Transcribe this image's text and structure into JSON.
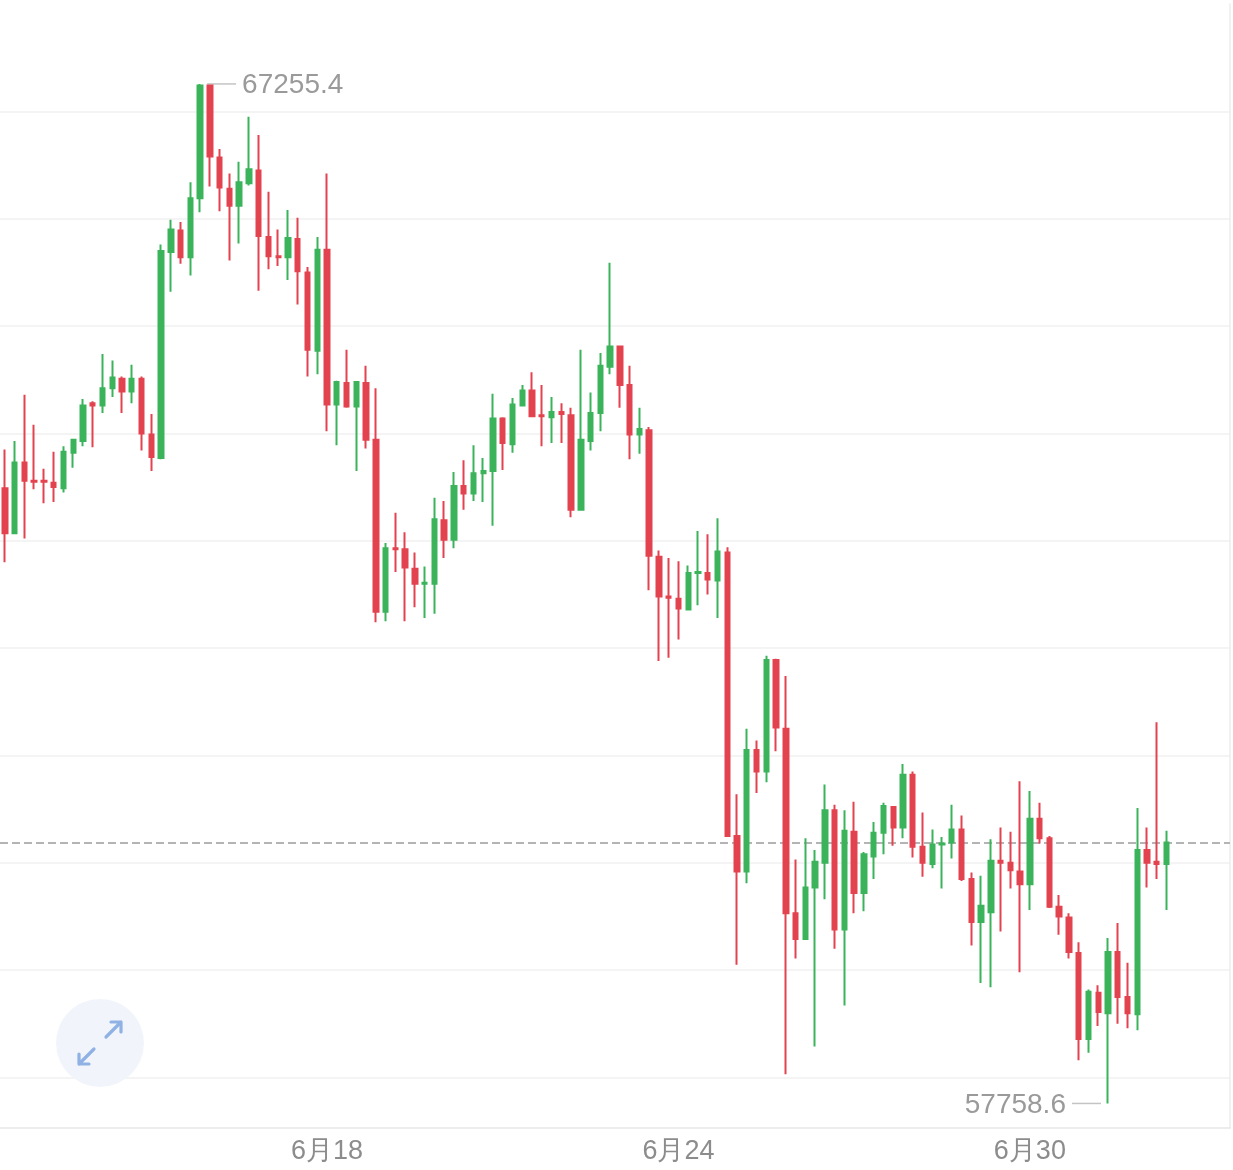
{
  "chart_data": {
    "type": "candlestick",
    "categories": [
      null,
      null,
      null,
      null,
      null,
      null,
      null,
      null,
      null,
      null,
      null,
      null,
      null,
      null,
      null,
      null,
      null,
      null,
      null,
      null,
      null,
      null,
      null,
      null,
      null,
      null,
      null,
      null,
      null,
      null,
      null,
      null,
      null,
      "6月18",
      null,
      null,
      null,
      null,
      null,
      null,
      null,
      null,
      null,
      null,
      null,
      null,
      null,
      null,
      null,
      null,
      null,
      null,
      null,
      null,
      null,
      null,
      null,
      null,
      null,
      null,
      null,
      null,
      null,
      null,
      null,
      null,
      null,
      null,
      null,
      "6月24",
      null,
      null,
      null,
      null,
      null,
      null,
      null,
      null,
      null,
      null,
      null,
      null,
      null,
      null,
      null,
      null,
      null,
      null,
      null,
      null,
      null,
      null,
      null,
      null,
      null,
      null,
      null,
      null,
      null,
      null,
      null,
      null,
      null,
      null,
      null,
      "6月30",
      null,
      null,
      null,
      null,
      null,
      null,
      null,
      null,
      null,
      null,
      null,
      null,
      null,
      null,
      null,
      null,
      null,
      null,
      null,
      null
    ],
    "ohlc": [
      [
        63490,
        63850,
        62800,
        63070
      ],
      [
        63070,
        63930,
        63070,
        63730
      ],
      [
        63730,
        64360,
        63020,
        63560
      ],
      [
        63560,
        64080,
        63480,
        63550
      ],
      [
        63560,
        63670,
        63350,
        63550
      ],
      [
        63540,
        63830,
        63360,
        63500
      ],
      [
        63490,
        63880,
        63450,
        63830
      ],
      [
        63820,
        63950,
        63680,
        63940
      ],
      [
        63930,
        64320,
        63880,
        64260
      ],
      [
        64280,
        64300,
        63870,
        64260
      ],
      [
        64260,
        64740,
        64190,
        64420
      ],
      [
        64420,
        64680,
        64340,
        64520
      ],
      [
        64510,
        64530,
        64190,
        64390
      ],
      [
        64390,
        64640,
        64280,
        64510
      ],
      [
        64510,
        64530,
        63840,
        64000
      ],
      [
        63990,
        64180,
        63650,
        63780
      ],
      [
        63770,
        65760,
        63760,
        65700
      ],
      [
        65690,
        65990,
        65320,
        65900
      ],
      [
        65890,
        65970,
        65580,
        65640
      ],
      [
        65640,
        66340,
        65470,
        66190
      ],
      [
        66190,
        67255.4,
        66060,
        67240
      ],
      [
        67240,
        67240,
        66300,
        66580
      ],
      [
        66570,
        66650,
        66070,
        66290
      ],
      [
        66280,
        66420,
        65610,
        66120
      ],
      [
        66120,
        66530,
        65770,
        66340
      ],
      [
        66330,
        66950,
        66310,
        66460
      ],
      [
        66450,
        66780,
        65330,
        65840
      ],
      [
        65830,
        66250,
        65530,
        65650
      ],
      [
        65650,
        65900,
        65560,
        65640
      ],
      [
        65640,
        66080,
        65430,
        65820
      ],
      [
        65810,
        66010,
        65200,
        65510
      ],
      [
        65500,
        65550,
        64530,
        64780
      ],
      [
        64770,
        65830,
        64550,
        65710
      ],
      [
        65710,
        66420,
        64020,
        64270
      ],
      [
        64270,
        64490,
        63890,
        64480
      ],
      [
        64470,
        64780,
        64240,
        64250
      ],
      [
        64250,
        64480,
        63650,
        64480
      ],
      [
        64470,
        64630,
        63860,
        63940
      ],
      [
        63940,
        64420,
        62240,
        62340
      ],
      [
        62340,
        62980,
        62250,
        62930
      ],
      [
        62930,
        63260,
        62710,
        62920
      ],
      [
        62920,
        63080,
        62250,
        62750
      ],
      [
        62740,
        62890,
        62380,
        62600
      ],
      [
        62600,
        62760,
        62280,
        62610
      ],
      [
        62600,
        63400,
        62320,
        63200
      ],
      [
        63190,
        63370,
        62840,
        63010
      ],
      [
        63010,
        63640,
        62930,
        63510
      ],
      [
        63510,
        63750,
        63290,
        63440
      ],
      [
        63440,
        63890,
        63370,
        63630
      ],
      [
        63630,
        63770,
        63360,
        63650
      ],
      [
        63650,
        64370,
        63140,
        64140
      ],
      [
        64140,
        64150,
        63660,
        63910
      ],
      [
        63900,
        64330,
        63820,
        64270
      ],
      [
        64260,
        64450,
        64260,
        64400
      ],
      [
        64400,
        64570,
        64150,
        64160
      ],
      [
        64170,
        64450,
        63880,
        64160
      ],
      [
        64150,
        64340,
        63910,
        64200
      ],
      [
        64200,
        64280,
        63910,
        64180
      ],
      [
        64170,
        64240,
        63220,
        63290
      ],
      [
        63290,
        64780,
        63290,
        63940
      ],
      [
        63930,
        64380,
        63840,
        64190
      ],
      [
        64190,
        64750,
        64020,
        64630
      ],
      [
        64620,
        65590,
        64550,
        64810
      ],
      [
        64810,
        64820,
        64240,
        64450
      ],
      [
        64450,
        64630,
        63760,
        63990
      ],
      [
        63990,
        64240,
        63810,
        64040
      ],
      [
        64030,
        64060,
        62540,
        62860
      ],
      [
        62850,
        62910,
        61880,
        62480
      ],
      [
        62480,
        62840,
        61910,
        62470
      ],
      [
        62460,
        62810,
        62080,
        62370
      ],
      [
        62360,
        62770,
        62350,
        62700
      ],
      [
        62700,
        63090,
        62400,
        62710
      ],
      [
        62700,
        63060,
        62500,
        62640
      ],
      [
        62630,
        63210,
        62280,
        62900
      ],
      [
        62890,
        62940,
        60240,
        60250
      ],
      [
        60250,
        60640,
        59050,
        59920
      ],
      [
        59920,
        61250,
        59810,
        61050
      ],
      [
        61050,
        61140,
        60650,
        60850
      ],
      [
        60850,
        61930,
        60750,
        61890
      ],
      [
        61890,
        61900,
        61040,
        61260
      ],
      [
        61250,
        61740,
        58030,
        59530
      ],
      [
        59530,
        60030,
        59110,
        59290
      ],
      [
        59290,
        60230,
        59290,
        59770
      ],
      [
        59770,
        60120,
        58290,
        60010
      ],
      [
        60000,
        60730,
        59660,
        60490
      ],
      [
        60490,
        60540,
        59200,
        59380
      ],
      [
        59380,
        60490,
        58670,
        60300
      ],
      [
        60290,
        60570,
        59530,
        59720
      ],
      [
        59720,
        60100,
        59550,
        60080
      ],
      [
        60060,
        60380,
        59850,
        60280
      ],
      [
        60280,
        60560,
        60080,
        60530
      ],
      [
        60520,
        60530,
        60160,
        60330
      ],
      [
        60330,
        60920,
        60230,
        60820
      ],
      [
        60820,
        60850,
        60050,
        60150
      ],
      [
        60150,
        60470,
        59870,
        60000
      ],
      [
        59990,
        60310,
        59950,
        60170
      ],
      [
        60170,
        60240,
        59760,
        60180
      ],
      [
        60190,
        60540,
        60040,
        60310
      ],
      [
        60310,
        60440,
        59830,
        59850
      ],
      [
        59850,
        59910,
        59230,
        59450
      ],
      [
        59450,
        59880,
        58880,
        59600
      ],
      [
        59540,
        60220,
        58840,
        60020
      ],
      [
        60020,
        60330,
        59360,
        60000
      ],
      [
        60000,
        60290,
        59760,
        59930
      ],
      [
        59920,
        60760,
        58980,
        59800
      ],
      [
        59800,
        60670,
        59560,
        60410
      ],
      [
        60410,
        60560,
        60180,
        60230
      ],
      [
        60230,
        60250,
        59580,
        59590
      ],
      [
        59590,
        59700,
        59330,
        59500
      ],
      [
        59490,
        59530,
        59110,
        59170
      ],
      [
        59160,
        59260,
        58160,
        58360
      ],
      [
        58360,
        58820,
        58230,
        58800
      ],
      [
        58790,
        58860,
        58480,
        58610
      ],
      [
        58600,
        59300,
        57758.6,
        59170
      ],
      [
        59170,
        59440,
        58500,
        58750
      ],
      [
        58750,
        59070,
        58460,
        58600
      ],
      [
        58590,
        60510,
        58440,
        60120
      ],
      [
        60120,
        60330,
        59770,
        60000
      ],
      [
        60010,
        61310,
        59850,
        59990
      ],
      [
        59990,
        60300,
        59560,
        60190
      ],
      null,
      null,
      null,
      null,
      null,
      null
    ],
    "colors": [
      "#e2434f",
      "#3bb35b",
      "#e2434f",
      "#e2434f",
      "#e2434f",
      "#e2434f",
      "#3bb35b",
      "#3bb35b",
      "#3bb35b",
      "#e2434f",
      "#3bb35b",
      "#3bb35b",
      "#e2434f",
      "#3bb35b",
      "#e2434f",
      "#e2434f",
      "#3bb35b",
      "#3bb35b",
      "#e2434f",
      "#3bb35b",
      "#3bb35b",
      "#e2434f",
      "#e2434f",
      "#e2434f",
      "#3bb35b",
      "#3bb35b",
      "#e2434f",
      "#e2434f",
      "#e2434f",
      "#3bb35b",
      "#e2434f",
      "#e2434f",
      "#3bb35b",
      "#e2434f",
      "#3bb35b",
      "#e2434f",
      "#3bb35b",
      "#e2434f",
      "#e2434f",
      "#3bb35b",
      "#e2434f",
      "#e2434f",
      "#e2434f",
      "#3bb35b",
      "#3bb35b",
      "#e2434f",
      "#3bb35b",
      "#e2434f",
      "#3bb35b",
      "#3bb35b",
      "#3bb35b",
      "#e2434f",
      "#3bb35b",
      "#3bb35b",
      "#e2434f",
      "#e2434f",
      "#3bb35b",
      "#e2434f",
      "#e2434f",
      "#3bb35b",
      "#3bb35b",
      "#3bb35b",
      "#3bb35b",
      "#e2434f",
      "#e2434f",
      "#3bb35b",
      "#e2434f",
      "#e2434f",
      "#e2434f",
      "#e2434f",
      "#3bb35b",
      "#3bb35b",
      "#e2434f",
      "#3bb35b",
      "#e2434f",
      "#e2434f",
      "#3bb35b",
      "#e2434f",
      "#3bb35b",
      "#e2434f",
      "#e2434f",
      "#e2434f",
      "#3bb35b",
      "#3bb35b",
      "#3bb35b",
      "#e2434f",
      "#3bb35b",
      "#e2434f",
      "#3bb35b",
      "#3bb35b",
      "#3bb35b",
      "#e2434f",
      "#3bb35b",
      "#e2434f",
      "#e2434f",
      "#3bb35b",
      "#3bb35b",
      "#3bb35b",
      "#e2434f",
      "#e2434f",
      "#3bb35b",
      "#3bb35b",
      "#e2434f",
      "#e2434f",
      "#e2434f",
      "#3bb35b",
      "#e2434f",
      "#e2434f",
      "#e2434f",
      "#e2434f",
      "#e2434f",
      "#3bb35b",
      "#e2434f",
      "#3bb35b",
      "#e2434f",
      "#e2434f",
      "#3bb35b",
      "#e2434f",
      "#e2434f",
      "#3bb35b",
      null,
      null,
      null,
      null,
      null,
      null
    ],
    "ylim": [
      57530,
      68000
    ],
    "yticks": [
      {
        "value": 58000,
        "label": null
      },
      {
        "value": 59000,
        "label": null
      },
      {
        "value": 60000,
        "label": null
      },
      {
        "value": 61000,
        "label": null
      },
      {
        "value": 62000,
        "label": null
      },
      {
        "value": 63000,
        "label": null
      },
      {
        "value": 64000,
        "label": null
      },
      {
        "value": 65000,
        "label": null
      },
      {
        "value": 66000,
        "label": null
      },
      {
        "value": 67000,
        "label": null
      }
    ],
    "grid": "y",
    "tick_labels": "x",
    "ref_lines": [
      {
        "axis": "y",
        "value": 60190,
        "line_style": "dashed",
        "color": "#b4b4b4"
      }
    ],
    "annotations": [
      "67255.4",
      "57758.6"
    ]
  }
}
